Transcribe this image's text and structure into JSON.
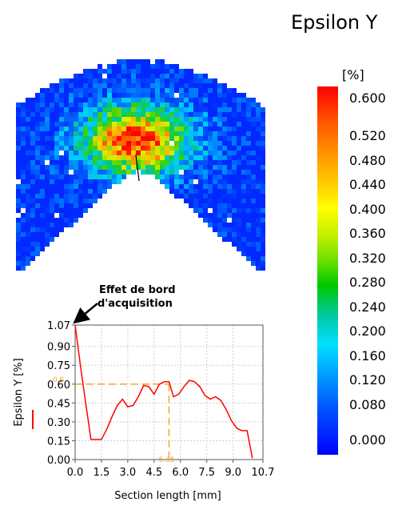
{
  "title": "Epsilon Y",
  "colorbar": {
    "unit": "[%]",
    "ticks": [
      "0.600",
      "0.520",
      "0.480",
      "0.440",
      "0.400",
      "0.360",
      "0.320",
      "0.280",
      "0.240",
      "0.200",
      "0.160",
      "0.120",
      "0.080",
      "0.000"
    ]
  },
  "annotation": {
    "line1": "Effet de bord",
    "line2": "d'acquisition"
  },
  "chart_data": {
    "type": "line",
    "xlabel": "Section length [mm]",
    "ylabel": "Epsilon Y [%]",
    "xlim": [
      0,
      10.7
    ],
    "ylim": [
      0,
      1.07
    ],
    "xticks": [
      "0.0",
      "1.5",
      "3.0",
      "4.5",
      "6.0",
      "7.5",
      "9.0",
      "10.7"
    ],
    "yticks": [
      "0.00",
      "0.15",
      "0.30",
      "0.45",
      "0.60",
      "0.75",
      "0.90",
      "1.07"
    ],
    "grid": true,
    "series": [
      {
        "color": "#ff0000",
        "x": [
          0.0,
          0.3,
          0.6,
          0.9,
          1.2,
          1.5,
          1.8,
          2.1,
          2.4,
          2.7,
          3.0,
          3.3,
          3.6,
          3.9,
          4.2,
          4.5,
          4.8,
          5.1,
          5.35,
          5.6,
          5.9,
          6.2,
          6.5,
          6.8,
          7.1,
          7.4,
          7.7,
          8.0,
          8.3,
          8.6,
          8.9,
          9.2,
          9.5,
          9.8,
          10.1
        ],
        "y": [
          1.07,
          0.75,
          0.45,
          0.16,
          0.16,
          0.16,
          0.24,
          0.34,
          0.43,
          0.48,
          0.42,
          0.43,
          0.5,
          0.59,
          0.58,
          0.52,
          0.6,
          0.62,
          0.62,
          0.5,
          0.52,
          0.58,
          0.63,
          0.62,
          0.58,
          0.51,
          0.48,
          0.5,
          0.47,
          0.4,
          0.31,
          0.25,
          0.23,
          0.23,
          0.01
        ]
      }
    ],
    "reference": {
      "color": "#f5a623",
      "x": 5.35,
      "y": 0.6,
      "x_label": "5.35",
      "y_label": "0.6"
    },
    "legend_marker_color": "#ff0000"
  }
}
